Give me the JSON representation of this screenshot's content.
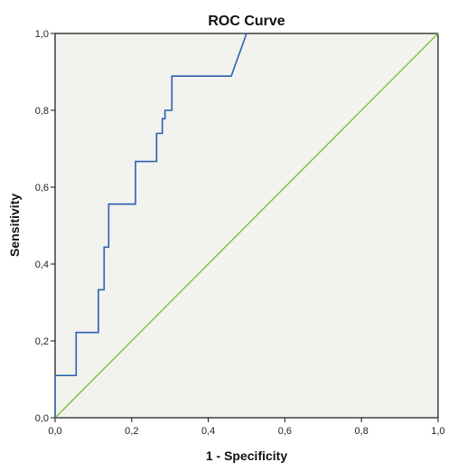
{
  "chart_data": {
    "type": "line",
    "title": "ROC Curve",
    "xlabel": "1 - Specificity",
    "ylabel": "Sensitivity",
    "xlim": [
      0,
      1
    ],
    "ylim": [
      0,
      1
    ],
    "x_ticks": [
      "0,0",
      "0,2",
      "0,4",
      "0,6",
      "0,8",
      "1,0"
    ],
    "y_ticks": [
      "0,0",
      "0,2",
      "0,4",
      "0,6",
      "0,8",
      "1,0"
    ],
    "grid": false,
    "legend": "none",
    "plot_background": "#f2f2ee",
    "series": [
      {
        "color": "#2a62b0",
        "x": [
          0.0,
          0.0,
          0.055,
          0.055,
          0.113,
          0.113,
          0.128,
          0.128,
          0.14,
          0.14,
          0.21,
          0.21,
          0.265,
          0.265,
          0.28,
          0.28,
          0.287,
          0.287,
          0.305,
          0.305,
          0.46,
          0.46,
          0.5
        ],
        "y": [
          0.0,
          0.11,
          0.11,
          0.222,
          0.222,
          0.333,
          0.333,
          0.444,
          0.444,
          0.556,
          0.556,
          0.667,
          0.667,
          0.74,
          0.74,
          0.778,
          0.778,
          0.8,
          0.8,
          0.889,
          0.889,
          0.889,
          1.0
        ]
      },
      {
        "color": "#7ec23a",
        "x": [
          0,
          1
        ],
        "y": [
          0,
          1
        ]
      }
    ]
  }
}
